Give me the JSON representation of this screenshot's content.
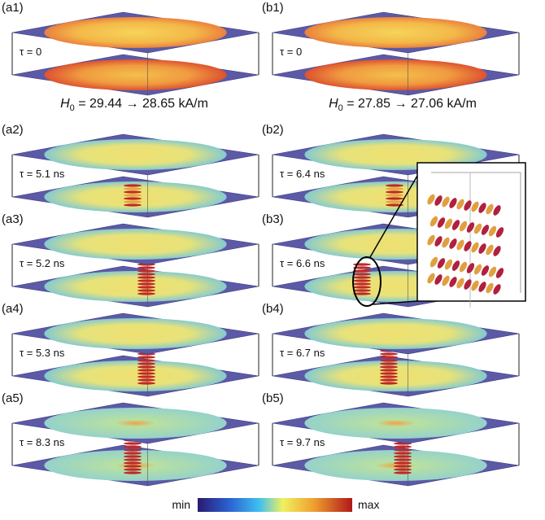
{
  "panels": [
    {
      "label": "(a1)",
      "time": "τ = 0"
    },
    {
      "label": "(a2)",
      "time": "τ = 5.1 ns"
    },
    {
      "label": "(a3)",
      "time": "τ = 5.2 ns"
    },
    {
      "label": "(a4)",
      "time": "τ = 5.3 ns"
    },
    {
      "label": "(a5)",
      "time": "τ = 8.3 ns"
    },
    {
      "label": "(b1)",
      "time": "τ = 0"
    },
    {
      "label": "(b2)",
      "time": "τ = 6.4 ns"
    },
    {
      "label": "(b3)",
      "time": "τ = 6.6 ns"
    },
    {
      "label": "(b4)",
      "time": "τ = 6.7 ns"
    },
    {
      "label": "(b5)",
      "time": "τ = 9.7 ns"
    }
  ],
  "headings": [
    {
      "symbol": "H",
      "subscript": "0",
      "text": " = 29.44 → 28.65 kA/m"
    },
    {
      "symbol": "H",
      "subscript": "0",
      "text": " = 27.85 → 27.06 kA/m"
    }
  ],
  "colorbar": {
    "min": "min",
    "max": "max"
  }
}
